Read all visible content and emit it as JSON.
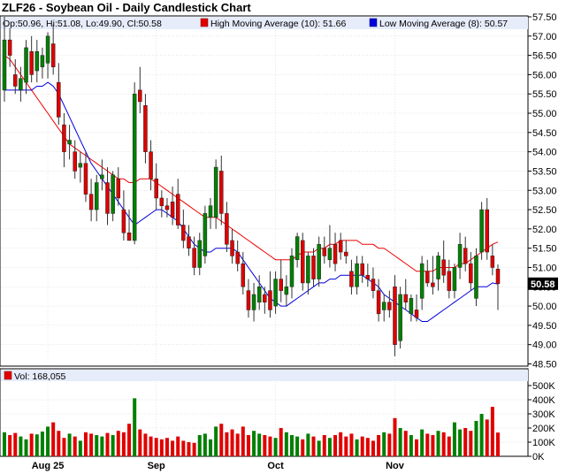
{
  "title": "ZLF26 - Soybean Oil - Daily Candlestick Chart",
  "ohlc_label": "Op:50.96, Hi:51.08, Lo:49.90, Cl:50.58",
  "legend": {
    "high_ma": "High Moving Average (10): 51.66",
    "low_ma": "Low Moving Average (8): 50.57"
  },
  "volume_label": "Vol: 168,055",
  "last_price_tag": "50.58",
  "colors": {
    "up": "#008000",
    "down": "#e00000",
    "high_ma": "#ee0000",
    "low_ma": "#0000dd",
    "legend_bg": "#e6ecfa",
    "grid": "#cccccc",
    "price_tag_bg": "#000000"
  },
  "chart_data": {
    "type": "candlestick",
    "price_axis": {
      "ylim": [
        48.5,
        57.5
      ],
      "ticks": [
        "48.50",
        "49.00",
        "49.50",
        "50.00",
        "50.50",
        "51.00",
        "51.50",
        "52.00",
        "52.50",
        "53.00",
        "53.50",
        "54.00",
        "54.50",
        "55.00",
        "55.50",
        "56.00",
        "56.50",
        "57.00",
        "57.50"
      ]
    },
    "volume_axis": {
      "ylim": [
        0,
        500000
      ],
      "ticks": [
        "0K",
        "100K",
        "200K",
        "300K",
        "400K",
        "500K"
      ]
    },
    "x_labels": [
      {
        "label": "Aug 25",
        "index": 8
      },
      {
        "label": "Sep",
        "index": 28
      },
      {
        "label": "Oct",
        "index": 50
      },
      {
        "label": "Nov",
        "index": 72
      }
    ],
    "candles": [
      {
        "o": 55.6,
        "h": 57.5,
        "l": 55.3,
        "c": 56.9
      },
      {
        "o": 56.9,
        "h": 57.2,
        "l": 56.2,
        "c": 56.5
      },
      {
        "o": 56.0,
        "h": 56.4,
        "l": 55.5,
        "c": 55.7
      },
      {
        "o": 55.6,
        "h": 56.2,
        "l": 55.3,
        "c": 55.9
      },
      {
        "o": 55.8,
        "h": 56.9,
        "l": 55.5,
        "c": 56.7
      },
      {
        "o": 56.6,
        "h": 57.0,
        "l": 55.8,
        "c": 56.0
      },
      {
        "o": 56.1,
        "h": 56.9,
        "l": 55.8,
        "c": 56.6
      },
      {
        "o": 56.2,
        "h": 56.7,
        "l": 55.9,
        "c": 56.5
      },
      {
        "o": 56.3,
        "h": 57.1,
        "l": 55.9,
        "c": 57.0
      },
      {
        "o": 56.8,
        "h": 57.3,
        "l": 56.0,
        "c": 56.2
      },
      {
        "o": 55.8,
        "h": 56.3,
        "l": 54.7,
        "c": 54.9
      },
      {
        "o": 54.7,
        "h": 55.0,
        "l": 53.6,
        "c": 54.0
      },
      {
        "o": 54.2,
        "h": 54.7,
        "l": 53.8,
        "c": 54.3
      },
      {
        "o": 54.0,
        "h": 54.3,
        "l": 53.3,
        "c": 53.5
      },
      {
        "o": 53.6,
        "h": 54.0,
        "l": 53.2,
        "c": 53.7
      },
      {
        "o": 53.7,
        "h": 54.0,
        "l": 52.7,
        "c": 52.9
      },
      {
        "o": 52.9,
        "h": 53.3,
        "l": 52.2,
        "c": 52.5
      },
      {
        "o": 52.5,
        "h": 53.4,
        "l": 52.2,
        "c": 53.2
      },
      {
        "o": 53.3,
        "h": 53.8,
        "l": 53.0,
        "c": 53.4
      },
      {
        "o": 53.2,
        "h": 53.6,
        "l": 52.1,
        "c": 52.4
      },
      {
        "o": 52.4,
        "h": 53.5,
        "l": 52.2,
        "c": 53.4
      },
      {
        "o": 53.3,
        "h": 53.6,
        "l": 52.6,
        "c": 52.8
      },
      {
        "o": 52.5,
        "h": 53.0,
        "l": 51.7,
        "c": 51.9
      },
      {
        "o": 51.9,
        "h": 52.5,
        "l": 51.7,
        "c": 51.7
      },
      {
        "o": 51.7,
        "h": 55.8,
        "l": 51.6,
        "c": 55.5
      },
      {
        "o": 55.6,
        "h": 56.2,
        "l": 55.0,
        "c": 55.3
      },
      {
        "o": 55.2,
        "h": 55.5,
        "l": 53.7,
        "c": 54.0
      },
      {
        "o": 54.0,
        "h": 54.3,
        "l": 53.0,
        "c": 53.3
      },
      {
        "o": 53.3,
        "h": 53.7,
        "l": 52.5,
        "c": 52.8
      },
      {
        "o": 52.8,
        "h": 53.0,
        "l": 52.3,
        "c": 52.6
      },
      {
        "o": 52.6,
        "h": 52.8,
        "l": 52.3,
        "c": 52.5
      },
      {
        "o": 52.7,
        "h": 53.1,
        "l": 52.1,
        "c": 52.3
      },
      {
        "o": 52.9,
        "h": 53.3,
        "l": 52.0,
        "c": 52.1
      },
      {
        "o": 52.1,
        "h": 52.5,
        "l": 51.5,
        "c": 51.7
      },
      {
        "o": 51.8,
        "h": 52.1,
        "l": 51.3,
        "c": 51.5
      },
      {
        "o": 51.5,
        "h": 51.8,
        "l": 50.8,
        "c": 51.0
      },
      {
        "o": 51.0,
        "h": 51.9,
        "l": 50.8,
        "c": 51.7
      },
      {
        "o": 51.3,
        "h": 52.6,
        "l": 51.1,
        "c": 52.4
      },
      {
        "o": 52.3,
        "h": 52.8,
        "l": 52.0,
        "c": 52.6
      },
      {
        "o": 52.3,
        "h": 53.8,
        "l": 52.0,
        "c": 53.6
      },
      {
        "o": 53.5,
        "h": 53.9,
        "l": 52.1,
        "c": 52.4
      },
      {
        "o": 52.4,
        "h": 52.7,
        "l": 51.4,
        "c": 51.6
      },
      {
        "o": 51.7,
        "h": 52.0,
        "l": 51.1,
        "c": 51.3
      },
      {
        "o": 51.4,
        "h": 51.7,
        "l": 50.9,
        "c": 51.1
      },
      {
        "o": 51.1,
        "h": 51.4,
        "l": 50.3,
        "c": 50.5
      },
      {
        "o": 50.4,
        "h": 50.7,
        "l": 49.7,
        "c": 49.9
      },
      {
        "o": 49.9,
        "h": 50.6,
        "l": 49.6,
        "c": 50.3
      },
      {
        "o": 50.1,
        "h": 50.8,
        "l": 49.9,
        "c": 50.5
      },
      {
        "o": 50.3,
        "h": 50.5,
        "l": 49.8,
        "c": 50.1
      },
      {
        "o": 50.4,
        "h": 50.9,
        "l": 49.7,
        "c": 49.9
      },
      {
        "o": 50.0,
        "h": 50.9,
        "l": 49.8,
        "c": 50.7
      },
      {
        "o": 50.7,
        "h": 51.2,
        "l": 50.1,
        "c": 50.4
      },
      {
        "o": 50.3,
        "h": 50.8,
        "l": 50.0,
        "c": 50.5
      },
      {
        "o": 50.5,
        "h": 51.5,
        "l": 50.2,
        "c": 51.3
      },
      {
        "o": 51.2,
        "h": 51.9,
        "l": 51.0,
        "c": 51.8
      },
      {
        "o": 51.7,
        "h": 51.9,
        "l": 50.4,
        "c": 50.6
      },
      {
        "o": 50.6,
        "h": 51.4,
        "l": 50.3,
        "c": 51.3
      },
      {
        "o": 51.3,
        "h": 51.5,
        "l": 50.5,
        "c": 50.7
      },
      {
        "o": 50.7,
        "h": 51.8,
        "l": 50.5,
        "c": 51.6
      },
      {
        "o": 51.5,
        "h": 51.8,
        "l": 51.1,
        "c": 51.3
      },
      {
        "o": 51.2,
        "h": 52.1,
        "l": 51.0,
        "c": 51.5
      },
      {
        "o": 51.6,
        "h": 51.9,
        "l": 50.9,
        "c": 51.1
      },
      {
        "o": 51.7,
        "h": 51.9,
        "l": 51.2,
        "c": 51.4
      },
      {
        "o": 51.4,
        "h": 51.7,
        "l": 51.1,
        "c": 51.3
      },
      {
        "o": 50.9,
        "h": 51.2,
        "l": 50.3,
        "c": 50.5
      },
      {
        "o": 50.5,
        "h": 51.3,
        "l": 50.3,
        "c": 51.1
      },
      {
        "o": 51.1,
        "h": 51.3,
        "l": 50.6,
        "c": 50.8
      },
      {
        "o": 50.8,
        "h": 51.1,
        "l": 50.5,
        "c": 50.7
      },
      {
        "o": 50.7,
        "h": 51.0,
        "l": 50.2,
        "c": 50.4
      },
      {
        "o": 50.4,
        "h": 50.7,
        "l": 49.6,
        "c": 49.8
      },
      {
        "o": 49.9,
        "h": 50.3,
        "l": 49.6,
        "c": 50.1
      },
      {
        "o": 50.1,
        "h": 50.4,
        "l": 49.7,
        "c": 49.9
      },
      {
        "o": 50.5,
        "h": 50.8,
        "l": 48.7,
        "c": 49.0
      },
      {
        "o": 49.1,
        "h": 50.5,
        "l": 48.9,
        "c": 50.3
      },
      {
        "o": 50.3,
        "h": 50.7,
        "l": 49.9,
        "c": 50.1
      },
      {
        "o": 49.8,
        "h": 50.3,
        "l": 49.6,
        "c": 50.2
      },
      {
        "o": 49.9,
        "h": 50.3,
        "l": 49.6,
        "c": 49.7
      },
      {
        "o": 50.2,
        "h": 51.3,
        "l": 49.9,
        "c": 51.1
      },
      {
        "o": 50.9,
        "h": 51.2,
        "l": 50.5,
        "c": 50.6
      },
      {
        "o": 50.6,
        "h": 51.3,
        "l": 50.3,
        "c": 50.5
      },
      {
        "o": 50.7,
        "h": 51.4,
        "l": 50.4,
        "c": 51.3
      },
      {
        "o": 51.2,
        "h": 51.7,
        "l": 50.6,
        "c": 50.8
      },
      {
        "o": 50.9,
        "h": 51.2,
        "l": 50.2,
        "c": 50.4
      },
      {
        "o": 50.4,
        "h": 51.1,
        "l": 50.2,
        "c": 51.0
      },
      {
        "o": 51.0,
        "h": 51.9,
        "l": 50.7,
        "c": 51.6
      },
      {
        "o": 51.5,
        "h": 51.8,
        "l": 50.9,
        "c": 51.1
      },
      {
        "o": 51.1,
        "h": 51.4,
        "l": 50.4,
        "c": 50.6
      },
      {
        "o": 50.2,
        "h": 51.5,
        "l": 50.0,
        "c": 51.3
      },
      {
        "o": 51.4,
        "h": 52.7,
        "l": 51.2,
        "c": 52.5
      },
      {
        "o": 52.5,
        "h": 52.8,
        "l": 51.2,
        "c": 51.4
      },
      {
        "o": 51.3,
        "h": 51.6,
        "l": 50.8,
        "c": 51.0
      },
      {
        "o": 50.96,
        "h": 51.08,
        "l": 49.9,
        "c": 50.58
      }
    ],
    "high_ma": [
      56.5,
      56.4,
      56.2,
      56.0,
      55.8,
      55.6,
      55.4,
      55.2,
      55.0,
      54.8,
      54.6,
      54.4,
      54.2,
      54.1,
      54.0,
      53.9,
      53.8,
      53.7,
      53.6,
      53.5,
      53.4,
      53.3,
      53.3,
      53.2,
      53.2,
      53.3,
      53.3,
      53.3,
      53.2,
      53.1,
      53.0,
      52.9,
      52.8,
      52.7,
      52.6,
      52.5,
      52.4,
      52.3,
      52.3,
      52.3,
      52.2,
      52.1,
      52.0,
      51.9,
      51.8,
      51.7,
      51.6,
      51.5,
      51.4,
      51.3,
      51.2,
      51.2,
      51.2,
      51.2,
      51.3,
      51.4,
      51.4,
      51.4,
      51.5,
      51.5,
      51.6,
      51.6,
      51.7,
      51.7,
      51.7,
      51.7,
      51.6,
      51.6,
      51.6,
      51.5,
      51.5,
      51.4,
      51.3,
      51.2,
      51.1,
      51.0,
      50.9,
      50.9,
      50.9,
      50.9,
      51.0,
      51.0,
      51.0,
      51.0,
      51.1,
      51.1,
      51.2,
      51.3,
      51.4,
      51.5,
      51.6,
      51.66
    ],
    "low_ma": [
      55.6,
      55.6,
      55.6,
      55.6,
      55.6,
      55.6,
      55.7,
      55.7,
      55.8,
      55.7,
      55.5,
      55.2,
      54.9,
      54.6,
      54.3,
      54.0,
      53.7,
      53.5,
      53.3,
      53.1,
      52.9,
      52.7,
      52.5,
      52.3,
      52.1,
      52.2,
      52.3,
      52.4,
      52.5,
      52.5,
      52.4,
      52.3,
      52.2,
      52.0,
      51.8,
      51.6,
      51.5,
      51.4,
      51.4,
      51.5,
      51.5,
      51.5,
      51.5,
      51.4,
      51.2,
      51.0,
      50.8,
      50.6,
      50.4,
      50.2,
      50.1,
      50.0,
      50.0,
      50.1,
      50.2,
      50.3,
      50.4,
      50.5,
      50.6,
      50.6,
      50.7,
      50.7,
      50.8,
      50.8,
      50.8,
      50.8,
      50.8,
      50.7,
      50.6,
      50.5,
      50.3,
      50.2,
      50.1,
      50.0,
      49.9,
      49.8,
      49.7,
      49.6,
      49.6,
      49.7,
      49.8,
      49.9,
      50.0,
      50.1,
      50.2,
      50.3,
      50.4,
      50.5,
      50.5,
      50.5,
      50.6,
      50.57
    ],
    "volumes": [
      170,
      150,
      165,
      140,
      120,
      160,
      155,
      175,
      210,
      240,
      180,
      130,
      160,
      140,
      110,
      170,
      160,
      150,
      140,
      165,
      150,
      180,
      170,
      230,
      410,
      190,
      160,
      140,
      130,
      120,
      130,
      110,
      140,
      110,
      100,
      95,
      150,
      160,
      120,
      210,
      230,
      170,
      190,
      160,
      210,
      150,
      180,
      160,
      150,
      140,
      130,
      200,
      170,
      150,
      140,
      120,
      160,
      140,
      110,
      150,
      130,
      150,
      170,
      140,
      160,
      120,
      140,
      130,
      110,
      150,
      170,
      160,
      270,
      200,
      180,
      150,
      120,
      190,
      160,
      150,
      180,
      170,
      140,
      240,
      190,
      200,
      180,
      250,
      300,
      260,
      350,
      168
    ]
  }
}
